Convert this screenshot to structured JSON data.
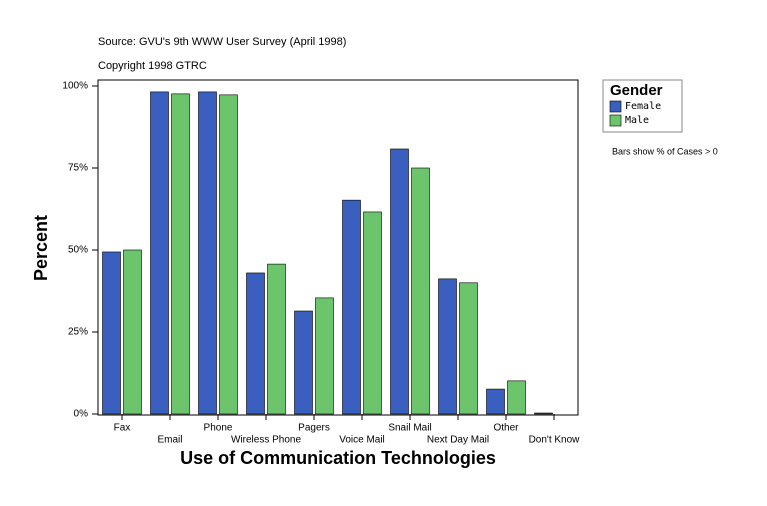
{
  "chart_data": {
    "type": "bar",
    "subtitle": "Source: GVU's 9th WWW User Survey (April 1998)",
    "copyright": "Copyright 1998 GTRC",
    "x_label": "Use of Communication Technologies",
    "y_label": "Percent",
    "note": "Bars show % of Cases > 0",
    "legend_title": "Gender",
    "categories": [
      "Fax",
      "Email",
      "Phone",
      "Wireless Phone",
      "Pagers",
      "Voice Mail",
      "Snail Mail",
      "Next Day Mail",
      "Other",
      "Don't Know"
    ],
    "series": [
      {
        "name": "Female",
        "color": "#3a5fbf",
        "values": [
          49.4,
          98.2,
          98.2,
          43.0,
          31.4,
          65.2,
          80.8,
          41.2,
          7.6,
          0.3
        ]
      },
      {
        "name": "Male",
        "color": "#6cc46c",
        "values": [
          50.0,
          97.6,
          97.3,
          45.7,
          35.4,
          61.6,
          75.0,
          40.0,
          10.1,
          0
        ]
      }
    ],
    "ylim": [
      0,
      102
    ],
    "yticks": [
      {
        "value": 0,
        "label": "0%"
      },
      {
        "value": 25,
        "label": "25%"
      },
      {
        "value": 50,
        "label": "50%"
      },
      {
        "value": 75,
        "label": "75%"
      },
      {
        "value": 100,
        "label": "100%"
      }
    ]
  }
}
